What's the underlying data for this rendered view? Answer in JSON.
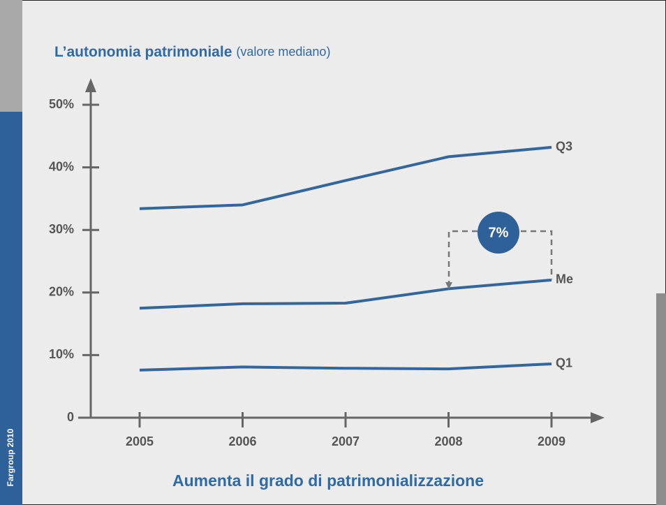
{
  "chart_data": {
    "type": "line",
    "title": "L’autonomia patrimoniale",
    "subtitle": "(valore mediano)",
    "caption": "Aumenta il grado di patrimonializzazione",
    "side_label": "Fargroup 2010",
    "annotation": "7%",
    "categories": [
      "2005",
      "2006",
      "2007",
      "2008",
      "2009"
    ],
    "series": [
      {
        "name": "Q3",
        "color": "#336699",
        "values": [
          33.4,
          34.0,
          37.9,
          41.7,
          43.2
        ]
      },
      {
        "name": "Me",
        "color": "#336699",
        "values": [
          17.5,
          18.2,
          18.3,
          20.6,
          22.0
        ]
      },
      {
        "name": "Q1",
        "color": "#336699",
        "values": [
          7.6,
          8.1,
          7.9,
          7.8,
          8.6
        ]
      }
    ],
    "ylim": [
      0,
      50
    ],
    "yticks": [
      0,
      {
        "value": 10,
        "label": "10%"
      },
      {
        "value": 20,
        "label": "20%"
      },
      {
        "value": 30,
        "label": "30%"
      },
      {
        "value": 40,
        "label": "40%"
      },
      {
        "value": 50,
        "label": "50%"
      }
    ]
  }
}
